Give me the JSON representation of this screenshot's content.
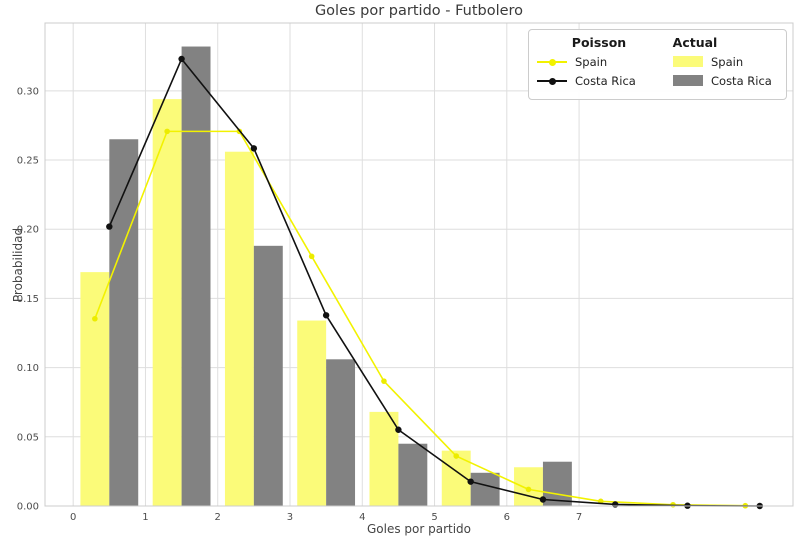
{
  "figure": {
    "title": "Goles por partido - Futbolero",
    "xlabel": "Goles por partido",
    "ylabel": "Probabilidad"
  },
  "legend": {
    "columns": [
      {
        "header": "Poisson",
        "entries": [
          {
            "label": "Spain",
            "handle": "line-with-dot",
            "color": "#f2f200"
          },
          {
            "label": "Costa Rica",
            "handle": "line-with-dot",
            "color": "#111111"
          }
        ]
      },
      {
        "header": "Actual",
        "entries": [
          {
            "label": "Spain",
            "handle": "swatch",
            "color": "#fbfb79"
          },
          {
            "label": "Costa Rica",
            "handle": "swatch",
            "color": "#828282"
          }
        ]
      }
    ]
  },
  "chart_data": {
    "type": "bar+line",
    "title": "Goles por partido - Futbolero",
    "xlabel": "Goles por partido",
    "ylabel": "Probabilidad",
    "categories": [
      0,
      1,
      2,
      3,
      4,
      5,
      6
    ],
    "bar_series": [
      {
        "name": "Actual Spain",
        "color": "#fbfb79",
        "offset_start": 0.1,
        "offset_end": 0.5,
        "values": [
          0.169,
          0.294,
          0.256,
          0.134,
          0.068,
          0.04,
          0.028
        ]
      },
      {
        "name": "Actual Costa Rica",
        "color": "#828282",
        "offset_start": 0.5,
        "offset_end": 0.9,
        "values": [
          0.265,
          0.332,
          0.188,
          0.106,
          0.045,
          0.024,
          0.032
        ]
      }
    ],
    "line_series": [
      {
        "name": "Poisson Spain",
        "color": "#f2f200",
        "marker_color": "#ecec00",
        "marker_radius": 2.8,
        "x_offset": 0.3,
        "x": [
          0,
          1,
          2,
          3,
          4,
          5,
          6,
          7,
          8,
          9
        ],
        "values": [
          0.1353,
          0.2707,
          0.2707,
          0.1804,
          0.0902,
          0.0361,
          0.012,
          0.0034,
          0.0009,
          0.0002
        ]
      },
      {
        "name": "Poisson Costa Rica",
        "color": "#111111",
        "marker_color": "#111111",
        "marker_radius": 3.2,
        "x_offset": 0.5,
        "x": [
          0,
          1,
          2,
          3,
          4,
          5,
          6,
          7,
          8,
          9
        ],
        "values": [
          0.2019,
          0.323,
          0.2584,
          0.1378,
          0.0551,
          0.0176,
          0.0047,
          0.0011,
          0.0002,
          0.0
        ]
      }
    ],
    "xticks": [
      0,
      1,
      2,
      3,
      4,
      5,
      6,
      7
    ],
    "yticks": [
      0.0,
      0.05,
      0.1,
      0.15,
      0.2,
      0.25,
      0.3
    ],
    "xlim": [
      -0.39,
      9.96
    ],
    "ylim": [
      0,
      0.349
    ],
    "grid": true,
    "grid_color": "#dedede",
    "spine_color": "#cccccc",
    "tick_color": "#4d4d4d",
    "legend_position": "upper right"
  }
}
